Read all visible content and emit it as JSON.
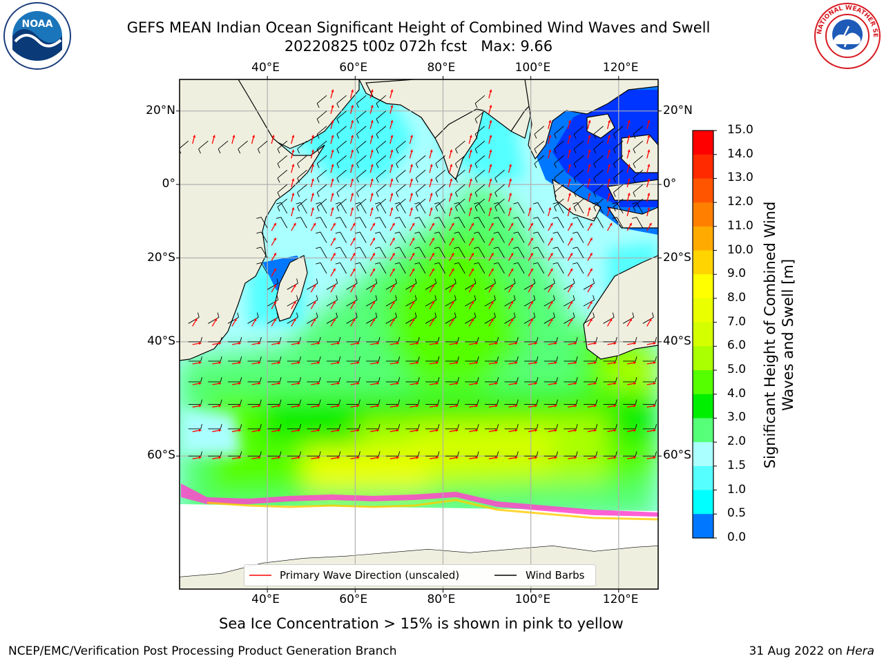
{
  "header": {
    "title_line1": "GEFS MEAN Indian Ocean Significant Height of Combined Wind Waves and Swell",
    "title_line2": "20220825 t00z 072h fcst   Max: 9.66"
  },
  "logos": {
    "noaa_text": "NOAA",
    "nws_text": "NATIONAL WEATHER SERVICE"
  },
  "map": {
    "lon_range": [
      20,
      129
    ],
    "lat_range": [
      -74,
      28
    ],
    "lon_ticks": [
      "40°E",
      "60°E",
      "80°E",
      "100°E",
      "120°E"
    ],
    "lat_ticks": [
      "20°N",
      "0°",
      "20°S",
      "40°S",
      "60°S"
    ],
    "gridlines": true,
    "land_color": "#efefdf",
    "colors": {
      "wave_direction": "#ff0000",
      "wind_barbs": "#000000",
      "sea_ice": "#ff44cc"
    }
  },
  "legend": {
    "wave_label": "Primary Wave Direction (unscaled)",
    "barb_label": "Wind Barbs"
  },
  "colorbar": {
    "label": "Significant Height of Combined Wind Waves and Swell [m]",
    "ticks": [
      "15.0",
      "14.0",
      "13.0",
      "12.0",
      "11.0",
      "10.0",
      "9.0",
      "8.0",
      "7.0",
      "6.0",
      "5.0",
      "4.0",
      "3.0",
      "2.0",
      "1.5",
      "1.0",
      "0.5",
      "0.0"
    ],
    "colors": [
      "#ff0000",
      "#ff2a00",
      "#ff5500",
      "#ff7f00",
      "#ffaa00",
      "#ffd400",
      "#ffff00",
      "#eaff00",
      "#d4ff00",
      "#aaff00",
      "#55ff00",
      "#00ee00",
      "#55ff77",
      "#aaffff",
      "#55ffff",
      "#00ffff",
      "#0077ff",
      "#0000ff"
    ]
  },
  "caption": "Sea Ice Concentration > 15% is shown in pink to yellow",
  "footer": {
    "left": "NCEP/EMC/Verification Post Processing Product Generation Branch",
    "date": "31 Aug 2022 on ",
    "machine": "Hera"
  }
}
